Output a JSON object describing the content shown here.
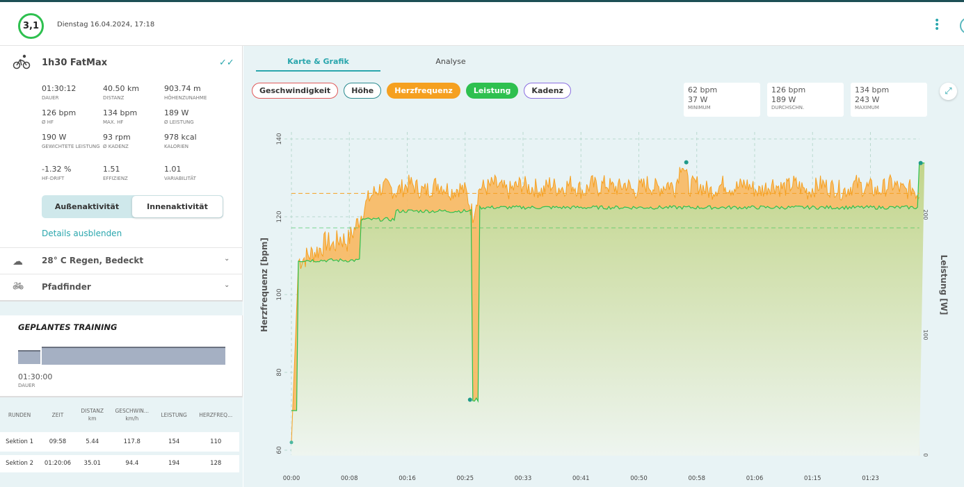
{
  "header": {
    "score": "3,1",
    "date": "Dienstag 16.04.2024, 17:18"
  },
  "activity": {
    "title": "1h30 FatMax",
    "stats": [
      {
        "value": "01:30:12",
        "label": "DAUER"
      },
      {
        "value": "40.50 km",
        "label": "DISTANZ"
      },
      {
        "value": "903.74 m",
        "label": "HÖHENZUNAHME"
      },
      {
        "value": "126 bpm",
        "label": "Ø HF"
      },
      {
        "value": "134 bpm",
        "label": "MAX. HF"
      },
      {
        "value": "189 W",
        "label": "Ø LEISTUNG"
      },
      {
        "value": "190 W",
        "label": "GEWICHTETE LEISTUNG"
      },
      {
        "value": "93 rpm",
        "label": "Ø KADENZ"
      },
      {
        "value": "978 kcal",
        "label": "KALORIEN"
      },
      {
        "value": "-1.32 %",
        "label": "HF-DRIFT"
      },
      {
        "value": "1.51",
        "label": "EFFIZIENZ"
      },
      {
        "value": "1.01",
        "label": "VARIABILITÄT"
      }
    ],
    "toggle": {
      "outdoor": "Außenaktivität",
      "indoor": "Innenaktivität"
    },
    "details_link": "Details ausblenden"
  },
  "weather": "28° C Regen, Bedeckt",
  "bike": "Pfadfinder",
  "planned": {
    "title": "GEPLANTES TRAINING",
    "duration": "01:30:00",
    "duration_label": "DAUER"
  },
  "laps": {
    "headers": [
      [
        "RUNDEN",
        ""
      ],
      [
        "ZEIT",
        ""
      ],
      [
        "DISTANZ",
        "km"
      ],
      [
        "GESCHWIN...",
        "km/h"
      ],
      [
        "LEISTUNG",
        ""
      ],
      [
        "HERZFREQ...",
        ""
      ]
    ],
    "rows": [
      [
        "Sektion 1",
        "09:58",
        "5.44",
        "117.8",
        "154",
        "110"
      ],
      [
        "Sektion 2",
        "01:20:06",
        "35.01",
        "94.4",
        "194",
        "128"
      ]
    ]
  },
  "tabs": [
    "Karte & Grafik",
    "Analyse"
  ],
  "pills": [
    {
      "label": "Geschwindigkeit",
      "color": "#e05a5a",
      "active": false
    },
    {
      "label": "Höhe",
      "color": "#2a8a8f",
      "active": false
    },
    {
      "label": "Herzfrequenz",
      "color": "#f5a020",
      "active": true
    },
    {
      "label": "Leistung",
      "color": "#2ec04f",
      "active": true
    },
    {
      "label": "Kadenz",
      "color": "#8a6ee0",
      "active": false
    }
  ],
  "summary": [
    {
      "hr": "62 bpm",
      "power": "37 W",
      "label": "MINIMUM"
    },
    {
      "hr": "126 bpm",
      "power": "189 W",
      "label": "DURCHSCHN."
    },
    {
      "hr": "134 bpm",
      "power": "243 W",
      "label": "MAXIMUM"
    }
  ],
  "chart_data": {
    "type": "line",
    "ylabel": "Herzfrequenz [bpm]",
    "y2label": "Leistung [W]",
    "xticks": [
      "00:00",
      "00:08",
      "00:16",
      "00:25",
      "00:33",
      "00:41",
      "00:50",
      "00:58",
      "01:06",
      "01:15",
      "01:23"
    ],
    "yticks": [
      60,
      80,
      100,
      120,
      140
    ],
    "y2ticks": [
      0,
      100,
      200
    ],
    "ylim": [
      60,
      143
    ],
    "y2lim": [
      0,
      270
    ],
    "xlim_min": [
      0,
      90
    ],
    "avg_hr": 126,
    "avg_power": 189,
    "series": [
      {
        "name": "Herzfrequenz",
        "color": "#f5a020",
        "unit": "bpm",
        "values": [
          62,
          108,
          109,
          110,
          111,
          113,
          112,
          114,
          113,
          116,
          120,
          124,
          126,
          127,
          127,
          126,
          127,
          128,
          127,
          126,
          127,
          128,
          127,
          126,
          127,
          126,
          120,
          127,
          127,
          128,
          127,
          126,
          127,
          128,
          127,
          127,
          126,
          128,
          127,
          127,
          128,
          127,
          126,
          128,
          127,
          128,
          127,
          127,
          128,
          126,
          127,
          128,
          127,
          127,
          128,
          127,
          134,
          127,
          128,
          127,
          126,
          127,
          128,
          127,
          127,
          128,
          127,
          126,
          127,
          128,
          127,
          127,
          128,
          127,
          126,
          127,
          128,
          127,
          127,
          126,
          127,
          128,
          127,
          127,
          126,
          127,
          128,
          127,
          126,
          127,
          125
        ]
      },
      {
        "name": "Leistung",
        "color": "#2ec04f",
        "unit": "W",
        "values": [
          37,
          162,
          162,
          162,
          162,
          162,
          162,
          162,
          162,
          162,
          196,
          196,
          196,
          196,
          196,
          203,
          203,
          203,
          203,
          203,
          203,
          203,
          203,
          203,
          203,
          203,
          46,
          206,
          206,
          206,
          206,
          206,
          206,
          206,
          206,
          206,
          206,
          206,
          206,
          206,
          206,
          206,
          206,
          206,
          206,
          206,
          206,
          206,
          206,
          206,
          206,
          206,
          206,
          206,
          206,
          206,
          206,
          206,
          206,
          206,
          206,
          206,
          206,
          206,
          206,
          206,
          206,
          206,
          206,
          206,
          206,
          206,
          206,
          206,
          206,
          206,
          206,
          206,
          206,
          206,
          206,
          206,
          206,
          206,
          206,
          206,
          206,
          206,
          206,
          206,
          243
        ]
      }
    ]
  }
}
